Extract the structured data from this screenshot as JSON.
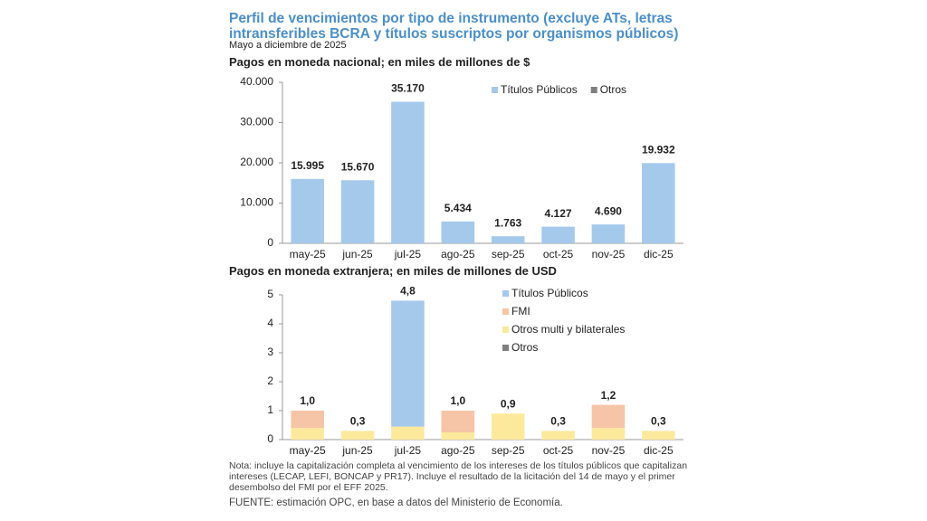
{
  "title": "Perfil de vencimientos por tipo de instrumento (excluye ATs, letras intransferibles BCRA y títulos suscriptos por organismos públicos)",
  "subtitle": "Mayo a diciembre de 2025",
  "chart_data": [
    {
      "type": "stacked_bar",
      "title": "Pagos en moneda nacional; en miles de millones de $",
      "categories": [
        "may-25",
        "jun-25",
        "jul-25",
        "ago-25",
        "sep-25",
        "oct-25",
        "nov-25",
        "dic-25"
      ],
      "series": [
        {
          "name": "Títulos Públicos",
          "color": "#a5c9eb",
          "values": [
            15995,
            15670,
            35170,
            5434,
            1763,
            4127,
            4690,
            19932
          ],
          "value_labels": [
            "15.995",
            "15.670",
            "35.170",
            "5.434",
            "1.763",
            "4.127",
            "4.690",
            "19.932"
          ]
        },
        {
          "name": "Otros",
          "color": "#7f7f7f",
          "values": [
            0,
            0,
            0,
            0,
            0,
            0,
            0,
            0
          ]
        }
      ],
      "ylim": [
        0,
        40000
      ],
      "yticks": [
        0,
        {
          "value": 10000,
          "label": "10.000"
        },
        {
          "value": 20000,
          "label": "20.000"
        },
        {
          "value": 30000,
          "label": "30.000"
        },
        {
          "value": 40000,
          "label": "40.000"
        }
      ],
      "legend": "top-right"
    },
    {
      "type": "stacked_bar",
      "title": "Pagos en moneda extranjera; en miles de millones de USD",
      "categories": [
        "may-25",
        "jun-25",
        "jul-25",
        "ago-25",
        "sep-25",
        "oct-25",
        "nov-25",
        "dic-25"
      ],
      "series": [
        {
          "name": "Otros multi y bilaterales",
          "color": "#fde99c",
          "values": [
            0.4,
            0.3,
            0.45,
            0.25,
            0.9,
            0.3,
            0.4,
            0.3
          ]
        },
        {
          "name": "FMI",
          "color": "#f6c4a6",
          "values": [
            0.6,
            0,
            0,
            0.75,
            0,
            0,
            0.8,
            0
          ]
        },
        {
          "name": "Títulos Públicos",
          "color": "#a5c9eb",
          "values": [
            0,
            0,
            4.35,
            0,
            0,
            0,
            0,
            0
          ]
        },
        {
          "name": "Otros",
          "color": "#7f7f7f",
          "values": [
            0,
            0,
            0,
            0,
            0,
            0,
            0,
            0
          ]
        }
      ],
      "legend_order": [
        2,
        1,
        0,
        3
      ],
      "totals": [
        1.0,
        0.3,
        4.8,
        1.0,
        0.9,
        0.3,
        1.2,
        0.3
      ],
      "total_labels": [
        "1,0",
        "0,3",
        "4,8",
        "1,0",
        "0,9",
        "0,3",
        "1,2",
        "0,3"
      ],
      "ylim": [
        0,
        5
      ],
      "yticks": [
        0,
        1,
        2,
        3,
        4,
        5
      ],
      "legend": "top-right"
    }
  ],
  "note": "Nota: incluye la capitalización completa al vencimiento de los intereses de los títulos públicos que capitalizan intereses (LECAP, LEFI, BONCAP y PR17). Incluye el resultado de la licitación del 14 de mayo y el primer desembolso del FMI por el EFF 2025.",
  "source": "FUENTE: estimación OPC, en base a datos del Ministerio de Economía."
}
